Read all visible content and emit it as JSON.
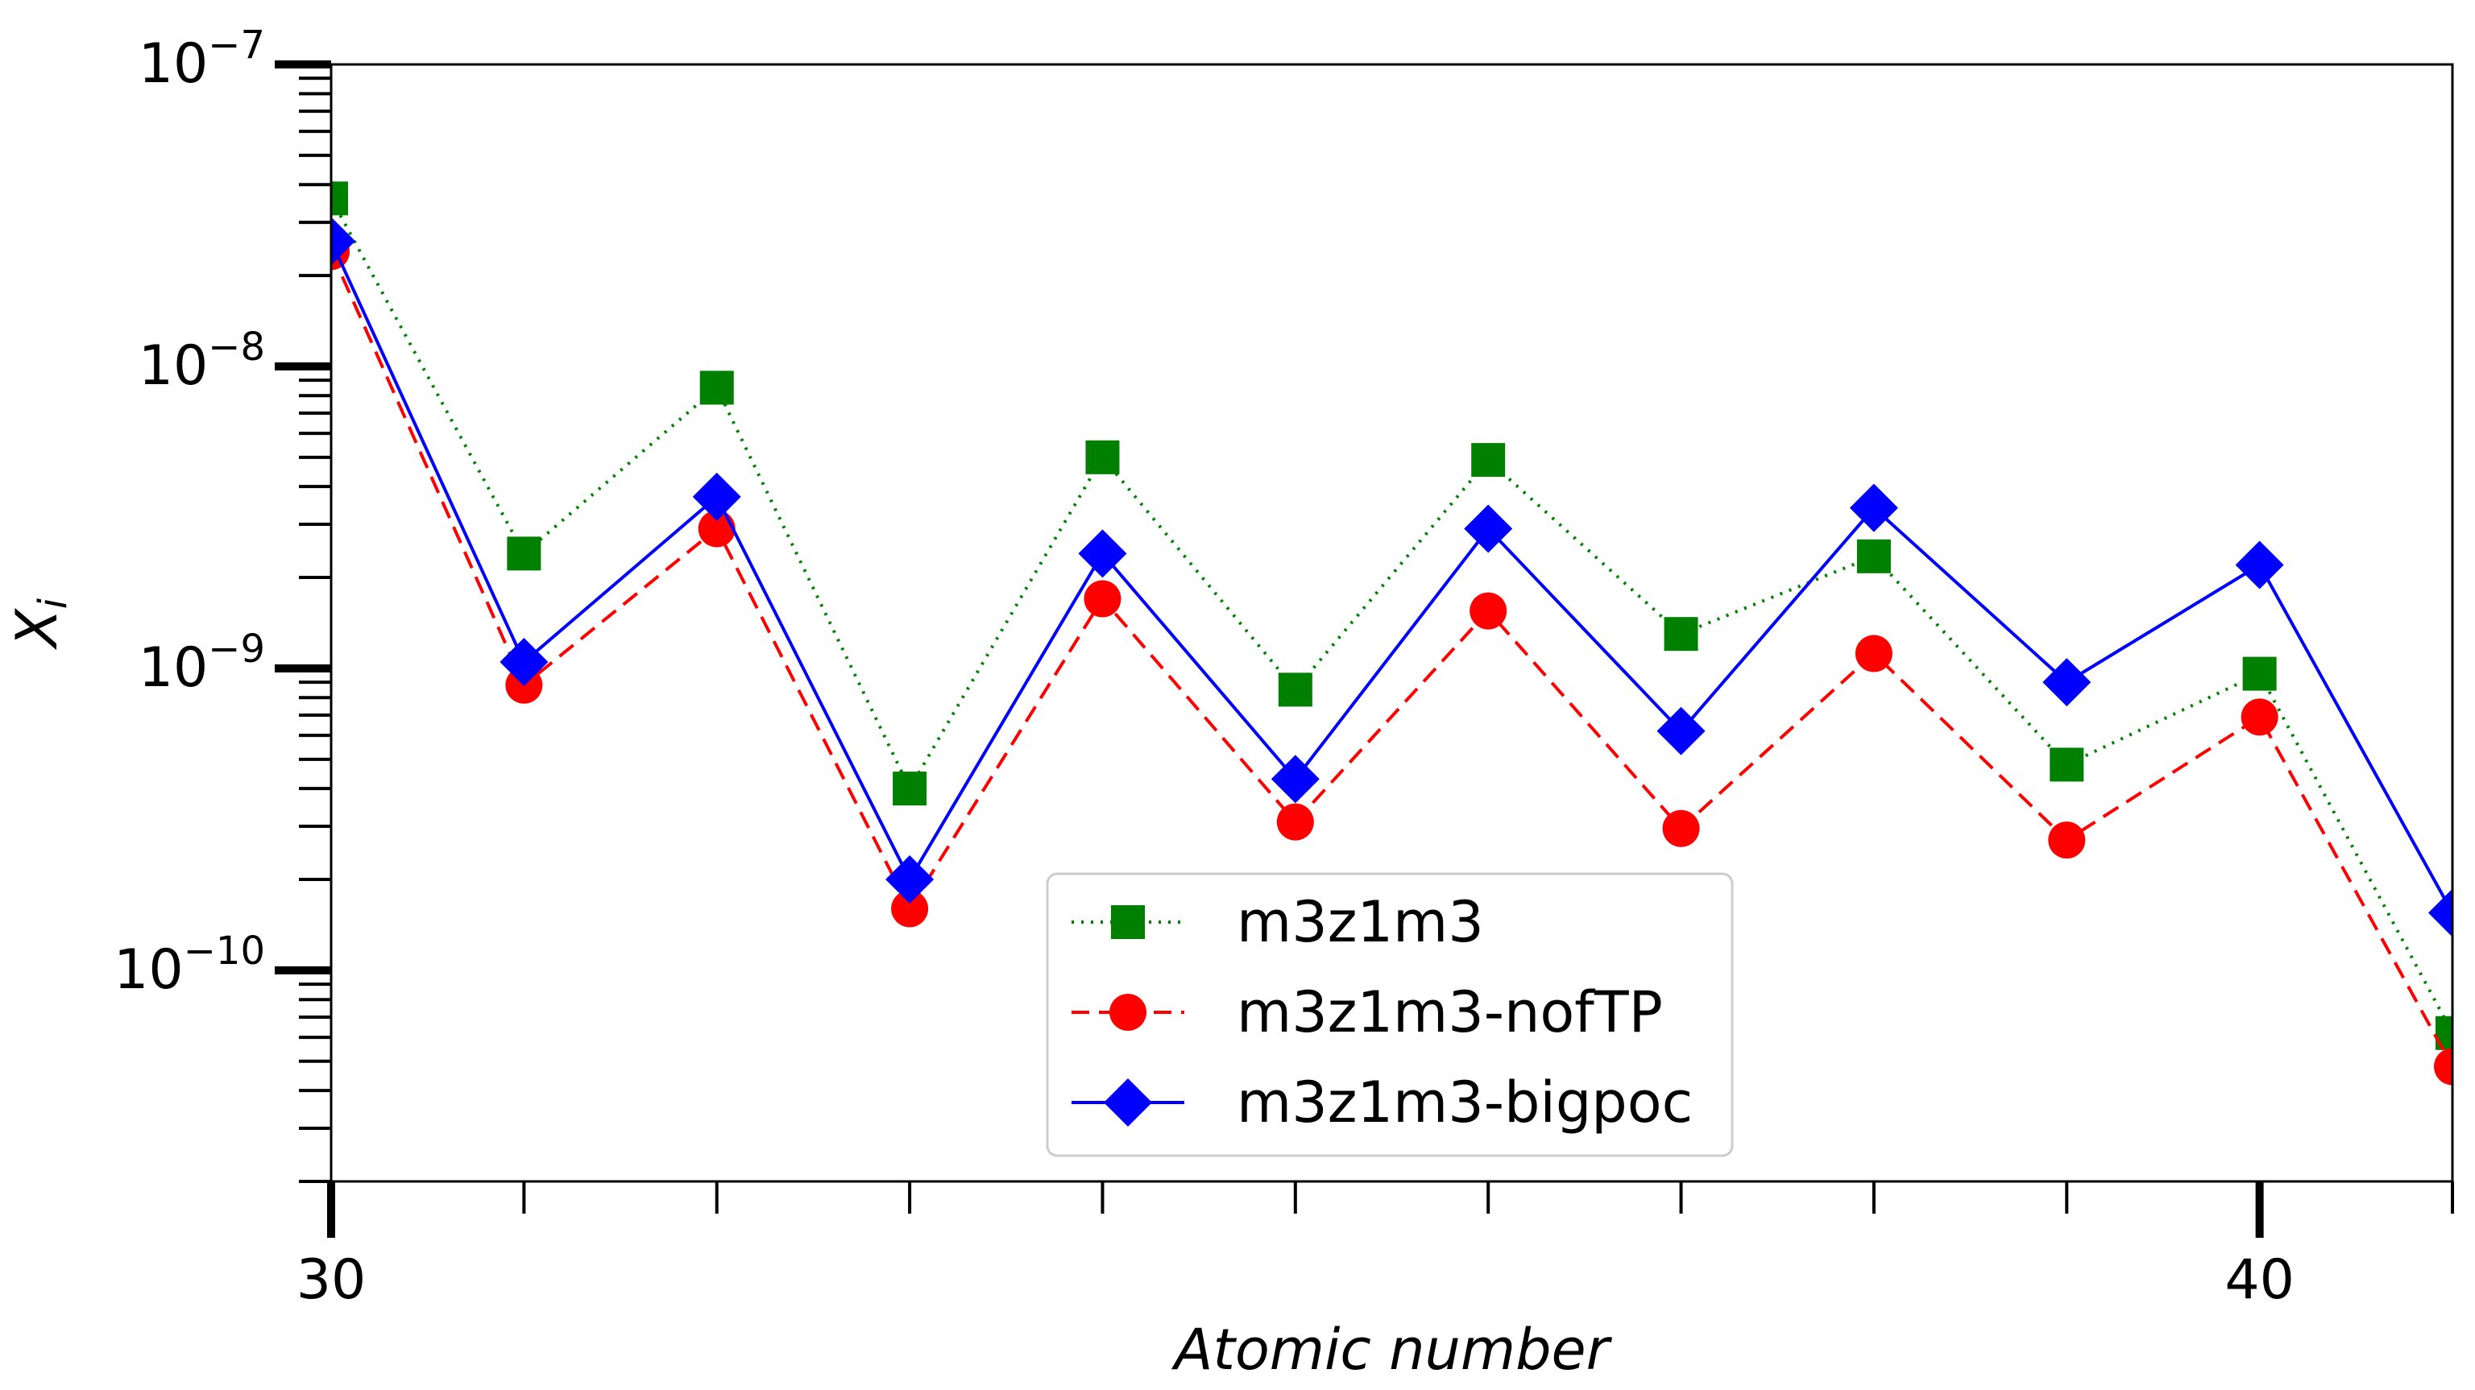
{
  "chart_data": {
    "type": "line",
    "title": "",
    "xlabel": "Atomic number",
    "ylabel": "X",
    "ylabel_subscript": "i",
    "yscale": "log",
    "xlim": [
      30,
      41
    ],
    "ylim": [
      2e-11,
      1e-07
    ],
    "grid": false,
    "x_ticks": [
      {
        "value": 30,
        "label": "30"
      },
      {
        "value": 40,
        "label": "40"
      }
    ],
    "y_ticks": [
      {
        "value": 1e-10,
        "base": "10",
        "exponent": "−10"
      },
      {
        "value": 1e-09,
        "base": "10",
        "exponent": "−9"
      },
      {
        "value": 1e-08,
        "base": "10",
        "exponent": "−8"
      },
      {
        "value": 1e-07,
        "base": "10",
        "exponent": "−7"
      }
    ],
    "x": [
      30,
      31,
      32,
      33,
      34,
      35,
      36,
      37,
      38,
      39,
      40,
      41
    ],
    "series": [
      {
        "name": "m3z1m3",
        "color": "#008000",
        "linestyle": "dotted",
        "marker": "square",
        "values": [
          3.6e-08,
          2.4e-09,
          8.5e-09,
          4e-10,
          5e-09,
          8.5e-10,
          4.9e-09,
          1.3e-09,
          2.35e-09,
          4.8e-10,
          9.6e-10,
          6.2e-11
        ]
      },
      {
        "name": "m3z1m3-nofTP",
        "color": "#ff0000",
        "linestyle": "dashed",
        "marker": "circle",
        "values": [
          2.4e-08,
          8.8e-10,
          2.9e-09,
          1.6e-10,
          1.7e-09,
          3.1e-10,
          1.55e-09,
          2.95e-10,
          1.12e-09,
          2.7e-10,
          6.9e-10,
          4.8e-11
        ]
      },
      {
        "name": "m3z1m3-bigpoc",
        "color": "#0000ff",
        "linestyle": "solid",
        "marker": "diamond",
        "values": [
          2.6e-08,
          1.05e-09,
          3.7e-09,
          2e-10,
          2.4e-09,
          4.3e-10,
          2.9e-09,
          6.2e-10,
          3.4e-09,
          9e-10,
          2.2e-09,
          1.55e-10
        ]
      }
    ],
    "legend": {
      "location": "lower-center"
    }
  }
}
